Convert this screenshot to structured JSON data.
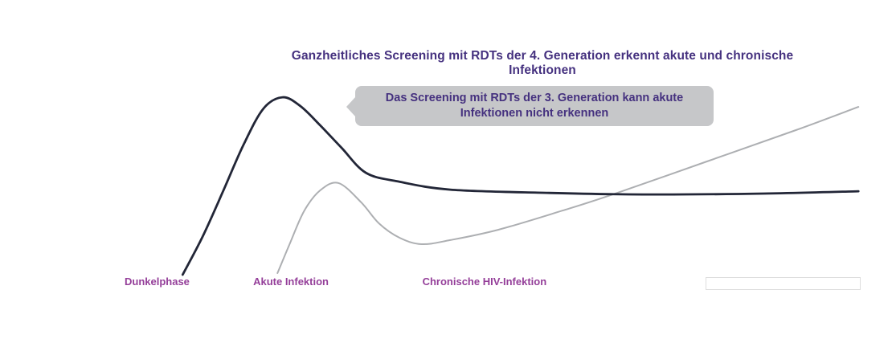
{
  "title": {
    "text": "Ganzheitliches Screening mit RDTs der 4. Generation erkennt akute und chronische Infektionen"
  },
  "callout": {
    "line1": "Das Screening mit RDTs der 3. Generation kann akute",
    "line2": "Infektionen nicht erkennen"
  },
  "colors": {
    "background": "#ffffff",
    "title_text": "#45317f",
    "callout_text": "#45317f",
    "callout_bg": "#c6c7c9",
    "phase_label_text": "#943e99",
    "curve_dark": "#222637",
    "area_fill": "#c6c7c9",
    "area_line": "#adafb2",
    "decline_line": "#ffffff",
    "footer_box_border": "#dedede"
  },
  "chart_data": {
    "type": "area",
    "title": "Ganzheitliches Screening mit RDTs der 4. Generation erkennt akute und chronische Infektionen",
    "x_unit": "Zeit (schematisch, 0-100, keine Achse sichtbar)",
    "y_unit": "Reaktivitaet / Niveau (schematisch, 0-100, keine Achse sichtbar)",
    "grid": false,
    "legend": false,
    "annotation_callout": "Das Screening mit RDTs der 3. Generation kann akute Infektionen nicht erkennen",
    "phases": [
      {
        "label": "Dunkelphase",
        "x": 0
      },
      {
        "label": "Akute Infektion",
        "x": 17.5
      },
      {
        "label": "Chronische HIV-Infektion",
        "x": 40.5
      }
    ],
    "series": [
      {
        "name": "dark-curve-4th-generation-screening",
        "type": "line",
        "color": "#222637",
        "points": [
          [
            7.9,
            0
          ],
          [
            10.6,
            21.2
          ],
          [
            13.4,
            46.8
          ],
          [
            16.2,
            73.0
          ],
          [
            18.9,
            93.2
          ],
          [
            21.5,
            99.5
          ],
          [
            23.9,
            94.6
          ],
          [
            26.6,
            83.8
          ],
          [
            29.5,
            71.2
          ],
          [
            32.8,
            57.2
          ],
          [
            37.2,
            52.3
          ],
          [
            44.3,
            47.7
          ],
          [
            57.4,
            45.9
          ],
          [
            70.5,
            45.0
          ],
          [
            86.9,
            45.5
          ],
          [
            99.8,
            46.8
          ]
        ]
      },
      {
        "name": "gray-area-3rd-generation-window",
        "type": "area",
        "line_color": "#adafb2",
        "fill_color": "#c6c7c9",
        "fill_from_index": 4,
        "baseline_y": 1.8,
        "points": [
          [
            20.8,
            0.9
          ],
          [
            22.4,
            16.7
          ],
          [
            24.4,
            35.6
          ],
          [
            26.6,
            47.3
          ],
          [
            29.1,
            51.4
          ],
          [
            32.2,
            40.5
          ],
          [
            34.6,
            28.8
          ],
          [
            37.4,
            20.7
          ],
          [
            40.4,
            17.1
          ],
          [
            44.3,
            19.4
          ],
          [
            50.8,
            25.2
          ],
          [
            59.6,
            36.0
          ],
          [
            66.4,
            45.0
          ],
          [
            79.2,
            63.5
          ],
          [
            91.3,
            81.1
          ],
          [
            99.8,
            94.1
          ]
        ]
      },
      {
        "name": "white-decline-line-inside-area",
        "type": "line",
        "color": "#ffffff",
        "points": [
          [
            29.3,
            50.9
          ],
          [
            32.5,
            26.6
          ],
          [
            35.7,
            2.3
          ]
        ]
      }
    ]
  }
}
